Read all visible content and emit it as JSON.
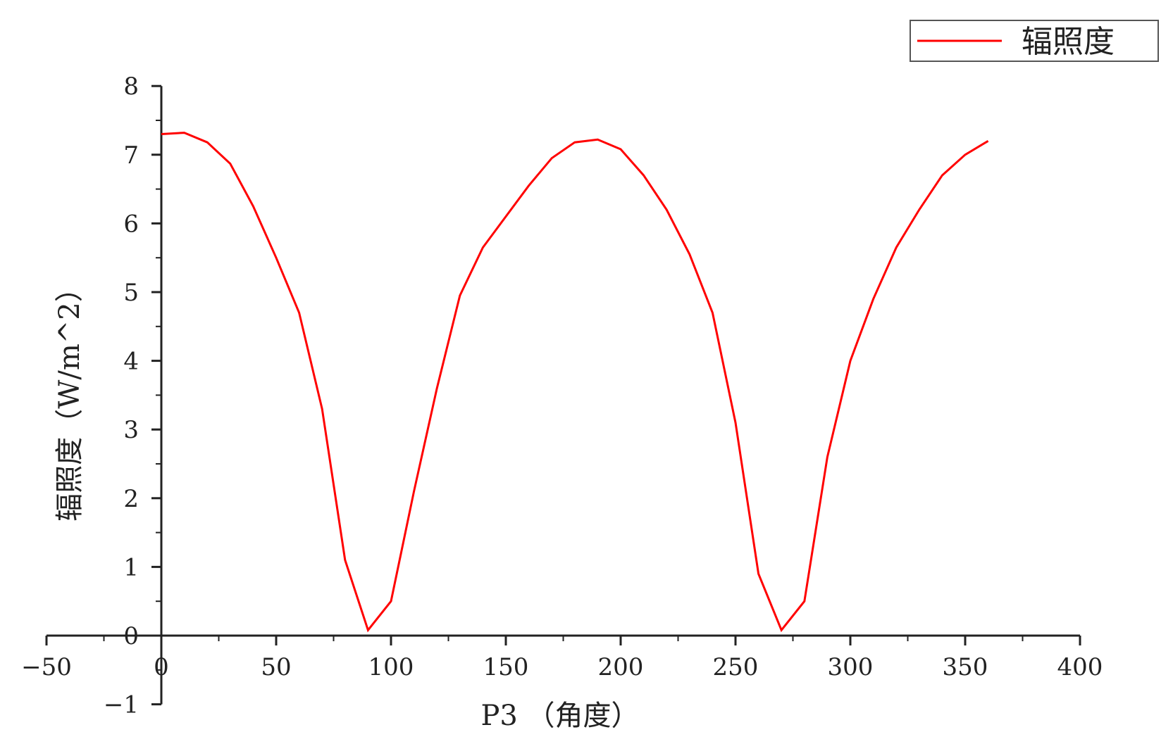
{
  "chart_data": {
    "type": "line",
    "title": "",
    "xlabel": "P3 （角度）",
    "ylabel": "辐照度（W/m^2）",
    "xlim": [
      -50,
      400
    ],
    "ylim": [
      -1,
      8
    ],
    "x_ticks": [
      -50,
      0,
      50,
      100,
      150,
      200,
      250,
      300,
      350,
      400
    ],
    "y_ticks": [
      -1,
      0,
      1,
      2,
      3,
      4,
      5,
      6,
      7,
      8
    ],
    "x_tick_labels": [
      "−50",
      "0",
      "50",
      "100",
      "150",
      "200",
      "250",
      "300",
      "350",
      "400"
    ],
    "y_tick_labels": [
      "−1",
      "0",
      "1",
      "2",
      "3",
      "4",
      "5",
      "6",
      "7",
      "8"
    ],
    "grid": false,
    "legend_position": "top-right",
    "series": [
      {
        "name": "辐照度",
        "color": "#ff0000",
        "x": [
          0,
          10,
          20,
          30,
          40,
          50,
          60,
          70,
          80,
          90,
          100,
          110,
          120,
          130,
          140,
          150,
          160,
          170,
          180,
          190,
          200,
          210,
          220,
          230,
          240,
          250,
          260,
          270,
          280,
          290,
          300,
          310,
          320,
          330,
          340,
          350,
          360
        ],
        "y": [
          7.3,
          7.32,
          7.18,
          6.87,
          6.25,
          5.5,
          4.7,
          3.3,
          1.1,
          0.08,
          0.5,
          2.1,
          3.6,
          4.95,
          5.65,
          6.1,
          6.55,
          6.95,
          7.18,
          7.22,
          7.08,
          6.7,
          6.2,
          5.55,
          4.7,
          3.1,
          0.9,
          0.08,
          0.5,
          2.6,
          4.0,
          4.9,
          5.65,
          6.2,
          6.7,
          7.0,
          7.2
        ]
      }
    ]
  }
}
